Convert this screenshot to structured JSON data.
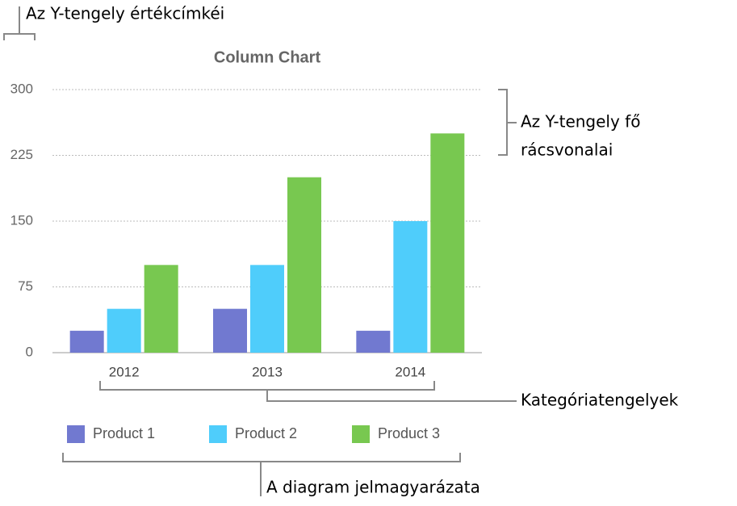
{
  "chart_data": {
    "type": "bar",
    "title": "Column Chart",
    "categories": [
      "2012",
      "2013",
      "2014"
    ],
    "series": [
      {
        "name": "Product 1",
        "color": "#7179d0",
        "values": [
          25,
          50,
          25
        ]
      },
      {
        "name": "Product 2",
        "color": "#4fcdfb",
        "values": [
          50,
          100,
          150
        ]
      },
      {
        "name": "Product 3",
        "color": "#78c850",
        "values": [
          100,
          200,
          250
        ]
      }
    ],
    "ylim": [
      0,
      300
    ],
    "yticks": [
      0,
      75,
      150,
      225,
      300
    ],
    "grid": true,
    "legend": "bottom",
    "annotations": [
      "Az Y-tengely értékcímkéi",
      "Az Y-tengely fő",
      "rácsvonalai",
      "Kategóriatengelyek",
      "A diagram jelmagyarázata"
    ]
  }
}
